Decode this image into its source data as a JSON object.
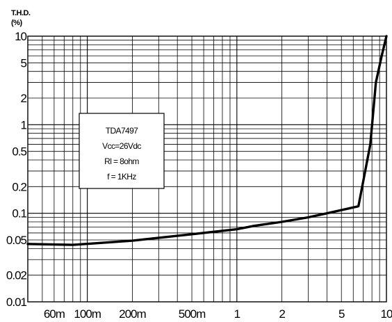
{
  "chart_data": {
    "type": "line",
    "ylabel_line1": "T.H.D.",
    "ylabel_line2": "(%)",
    "xlabel": "",
    "x_scale": "log",
    "y_scale": "log",
    "xlim": [
      0.04,
      10
    ],
    "ylim": [
      0.01,
      10
    ],
    "grid": true,
    "x_ticks": [
      {
        "value": 0.06,
        "label": "60m"
      },
      {
        "value": 0.1,
        "label": "100m"
      },
      {
        "value": 0.2,
        "label": "200m"
      },
      {
        "value": 0.5,
        "label": "500m"
      },
      {
        "value": 1,
        "label": "1"
      },
      {
        "value": 2,
        "label": "2"
      },
      {
        "value": 5,
        "label": "5"
      },
      {
        "value": 10,
        "label": "10"
      }
    ],
    "y_ticks": [
      {
        "value": 10,
        "label": "10"
      },
      {
        "value": 5,
        "label": "5"
      },
      {
        "value": 2,
        "label": "2"
      },
      {
        "value": 1,
        "label": "1"
      },
      {
        "value": 0.5,
        "label": "0.5"
      },
      {
        "value": 0.2,
        "label": "0.2"
      },
      {
        "value": 0.1,
        "label": "0.1"
      },
      {
        "value": 0.05,
        "label": "0.05"
      },
      {
        "value": 0.02,
        "label": "0.02"
      },
      {
        "value": 0.01,
        "label": "0.01"
      }
    ],
    "annotation": [
      "TDA7497",
      "Vcc=26Vdc",
      "Rl = 8ohm",
      "f = 1KHz"
    ],
    "series": [
      {
        "x": [
          0.04,
          0.08,
          0.2,
          0.5,
          1,
          1.3,
          2,
          3,
          4,
          6.5,
          7.8,
          8.5,
          9.3,
          10
        ],
        "y": [
          0.045,
          0.044,
          0.049,
          0.058,
          0.066,
          0.072,
          0.08,
          0.09,
          0.1,
          0.12,
          0.6,
          3,
          6,
          10
        ]
      }
    ]
  }
}
